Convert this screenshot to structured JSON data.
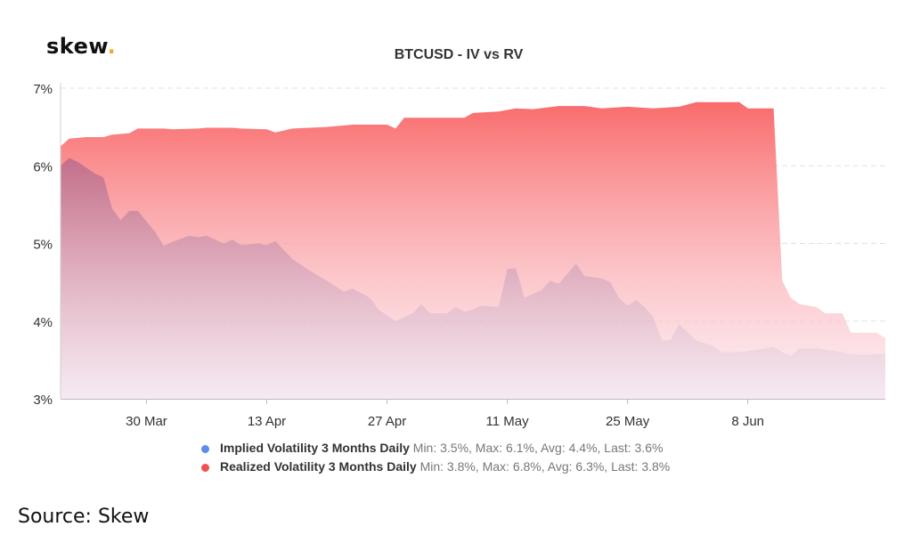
{
  "logo": {
    "text": "skew",
    "dot": "."
  },
  "source": "Source: Skew",
  "colors": {
    "implied": "#5b8def",
    "realized": "#f05050",
    "realized_fill_top": "#f96b6b",
    "implied_fill_top": "#c77a96",
    "grid": "#e2e2e2"
  },
  "chart_data": {
    "type": "area",
    "title": "BTCUSD - IV vs RV",
    "xlabel": "",
    "ylabel": "",
    "ylim": [
      3,
      7
    ],
    "xlim": [
      "2020-03-20",
      "2020-06-24"
    ],
    "y_ticks": [
      "3%",
      "4%",
      "5%",
      "6%",
      "7%"
    ],
    "x_ticks": [
      {
        "date": "2020-03-30",
        "label": "30 Mar"
      },
      {
        "date": "2020-04-13",
        "label": "13 Apr"
      },
      {
        "date": "2020-04-27",
        "label": "27 Apr"
      },
      {
        "date": "2020-05-11",
        "label": "11 May"
      },
      {
        "date": "2020-05-25",
        "label": "25 May"
      },
      {
        "date": "2020-06-08",
        "label": "8 Jun"
      }
    ],
    "grid": true,
    "legend_position": "bottom",
    "series": [
      {
        "name": "Realized Volatility 3 Months Daily",
        "stats": "Min: 3.8%, Max: 6.8%, Avg: 6.3%, Last: 3.8%",
        "points": [
          [
            "2020-03-20",
            6.25
          ],
          [
            "2020-03-21",
            6.35
          ],
          [
            "2020-03-23",
            6.37
          ],
          [
            "2020-03-25",
            6.37
          ],
          [
            "2020-03-26",
            6.4
          ],
          [
            "2020-03-28",
            6.42
          ],
          [
            "2020-03-29",
            6.48
          ],
          [
            "2020-04-01",
            6.48
          ],
          [
            "2020-04-02",
            6.47
          ],
          [
            "2020-04-05",
            6.48
          ],
          [
            "2020-04-06",
            6.49
          ],
          [
            "2020-04-09",
            6.49
          ],
          [
            "2020-04-10",
            6.48
          ],
          [
            "2020-04-13",
            6.47
          ],
          [
            "2020-04-14",
            6.43
          ],
          [
            "2020-04-16",
            6.48
          ],
          [
            "2020-04-20",
            6.5
          ],
          [
            "2020-04-23",
            6.53
          ],
          [
            "2020-04-27",
            6.53
          ],
          [
            "2020-04-28",
            6.48
          ],
          [
            "2020-04-29",
            6.62
          ],
          [
            "2020-05-02",
            6.62
          ],
          [
            "2020-05-04",
            6.62
          ],
          [
            "2020-05-06",
            6.62
          ],
          [
            "2020-05-07",
            6.68
          ],
          [
            "2020-05-10",
            6.7
          ],
          [
            "2020-05-12",
            6.74
          ],
          [
            "2020-05-14",
            6.73
          ],
          [
            "2020-05-17",
            6.77
          ],
          [
            "2020-05-20",
            6.77
          ],
          [
            "2020-05-22",
            6.74
          ],
          [
            "2020-05-25",
            6.76
          ],
          [
            "2020-05-28",
            6.74
          ],
          [
            "2020-05-31",
            6.76
          ],
          [
            "2020-06-02",
            6.82
          ],
          [
            "2020-06-05",
            6.82
          ],
          [
            "2020-06-07",
            6.82
          ],
          [
            "2020-06-08",
            6.74
          ],
          [
            "2020-06-11",
            6.74
          ],
          [
            "2020-06-12",
            4.52
          ],
          [
            "2020-06-13",
            4.3
          ],
          [
            "2020-06-14",
            4.22
          ],
          [
            "2020-06-16",
            4.18
          ],
          [
            "2020-06-17",
            4.1
          ],
          [
            "2020-06-19",
            4.1
          ],
          [
            "2020-06-20",
            3.85
          ],
          [
            "2020-06-23",
            3.85
          ],
          [
            "2020-06-24",
            3.78
          ]
        ]
      },
      {
        "name": "Implied Volatility 3 Months Daily",
        "stats": "Min: 3.5%, Max: 6.1%, Avg: 4.4%, Last: 3.6%",
        "points": [
          [
            "2020-03-20",
            6.0
          ],
          [
            "2020-03-21",
            6.1
          ],
          [
            "2020-03-22",
            6.05
          ],
          [
            "2020-03-24",
            5.9
          ],
          [
            "2020-03-25",
            5.85
          ],
          [
            "2020-03-26",
            5.45
          ],
          [
            "2020-03-27",
            5.3
          ],
          [
            "2020-03-28",
            5.42
          ],
          [
            "2020-03-29",
            5.42
          ],
          [
            "2020-03-31",
            5.15
          ],
          [
            "2020-04-01",
            4.97
          ],
          [
            "2020-04-02",
            5.02
          ],
          [
            "2020-04-04",
            5.1
          ],
          [
            "2020-04-05",
            5.08
          ],
          [
            "2020-04-06",
            5.1
          ],
          [
            "2020-04-08",
            5.0
          ],
          [
            "2020-04-09",
            5.05
          ],
          [
            "2020-04-10",
            4.98
          ],
          [
            "2020-04-12",
            5.0
          ],
          [
            "2020-04-13",
            4.98
          ],
          [
            "2020-04-14",
            5.03
          ],
          [
            "2020-04-16",
            4.8
          ],
          [
            "2020-04-18",
            4.65
          ],
          [
            "2020-04-20",
            4.52
          ],
          [
            "2020-04-22",
            4.38
          ],
          [
            "2020-04-23",
            4.42
          ],
          [
            "2020-04-25",
            4.3
          ],
          [
            "2020-04-26",
            4.15
          ],
          [
            "2020-04-28",
            4.0
          ],
          [
            "2020-04-30",
            4.1
          ],
          [
            "2020-05-01",
            4.22
          ],
          [
            "2020-05-02",
            4.1
          ],
          [
            "2020-05-04",
            4.1
          ],
          [
            "2020-05-05",
            4.18
          ],
          [
            "2020-05-06",
            4.12
          ],
          [
            "2020-05-07",
            4.15
          ],
          [
            "2020-05-08",
            4.2
          ],
          [
            "2020-05-10",
            4.18
          ],
          [
            "2020-05-11",
            4.67
          ],
          [
            "2020-05-12",
            4.68
          ],
          [
            "2020-05-13",
            4.3
          ],
          [
            "2020-05-15",
            4.4
          ],
          [
            "2020-05-16",
            4.52
          ],
          [
            "2020-05-17",
            4.48
          ],
          [
            "2020-05-19",
            4.74
          ],
          [
            "2020-05-20",
            4.58
          ],
          [
            "2020-05-22",
            4.55
          ],
          [
            "2020-05-23",
            4.5
          ],
          [
            "2020-05-24",
            4.3
          ],
          [
            "2020-05-25",
            4.2
          ],
          [
            "2020-05-26",
            4.27
          ],
          [
            "2020-05-27",
            4.18
          ],
          [
            "2020-05-28",
            4.05
          ],
          [
            "2020-05-29",
            3.75
          ],
          [
            "2020-05-30",
            3.76
          ],
          [
            "2020-05-31",
            3.96
          ],
          [
            "2020-06-02",
            3.75
          ],
          [
            "2020-06-04",
            3.68
          ],
          [
            "2020-06-05",
            3.6
          ],
          [
            "2020-06-07",
            3.6
          ],
          [
            "2020-06-09",
            3.63
          ],
          [
            "2020-06-11",
            3.67
          ],
          [
            "2020-06-12",
            3.6
          ],
          [
            "2020-06-13",
            3.55
          ],
          [
            "2020-06-14",
            3.65
          ],
          [
            "2020-06-16",
            3.65
          ],
          [
            "2020-06-19",
            3.6
          ],
          [
            "2020-06-20",
            3.57
          ],
          [
            "2020-06-22",
            3.57
          ],
          [
            "2020-06-24",
            3.58
          ]
        ]
      }
    ]
  }
}
